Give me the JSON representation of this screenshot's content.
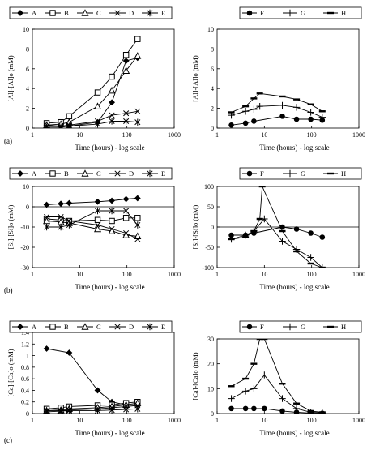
{
  "figure": {
    "row_labels": [
      "(a)",
      "(b)",
      "(c)"
    ]
  },
  "chart_data": [
    {
      "type": "line",
      "id": "a-left",
      "xlabel": "Time (hours) - log scale",
      "ylabel": "[Al]-[Al]o (mM)",
      "xscale": "log",
      "xlim": [
        1,
        1000
      ],
      "ylim": [
        0,
        10
      ],
      "xticks": [
        1,
        10,
        100,
        1000
      ],
      "yticks": [
        0,
        2,
        4,
        6,
        8,
        10
      ],
      "zero_line": false,
      "legend": "top",
      "series": [
        {
          "name": "A",
          "marker": "diamond",
          "x": [
            2,
            4,
            6,
            24,
            48,
            96,
            168
          ],
          "y": [
            0.3,
            0.2,
            0.2,
            0.6,
            2.6,
            6.8,
            7.1
          ]
        },
        {
          "name": "B",
          "marker": "square",
          "x": [
            2,
            4,
            6,
            24,
            48,
            96,
            168
          ],
          "y": [
            0.5,
            0.6,
            1.2,
            3.6,
            5.2,
            7.4,
            9.0
          ]
        },
        {
          "name": "C",
          "marker": "triangle",
          "x": [
            2,
            4,
            6,
            24,
            48,
            96,
            168
          ],
          "y": [
            0.3,
            0.4,
            0.6,
            2.2,
            3.8,
            5.8,
            7.3
          ]
        },
        {
          "name": "D",
          "marker": "x",
          "x": [
            2,
            4,
            6,
            24,
            48,
            96,
            168
          ],
          "y": [
            0.2,
            0.2,
            0.3,
            0.7,
            1.3,
            1.5,
            1.7
          ]
        },
        {
          "name": "E",
          "marker": "star",
          "x": [
            2,
            4,
            6,
            24,
            48,
            96,
            168
          ],
          "y": [
            0.1,
            0.1,
            0.2,
            0.4,
            0.7,
            0.7,
            0.6
          ]
        }
      ]
    },
    {
      "type": "line",
      "id": "a-right",
      "xlabel": "Time (hours) - log scale",
      "ylabel": "[Al]-[Al]o (mM)",
      "xscale": "log",
      "xlim": [
        1,
        1000
      ],
      "ylim": [
        0,
        10
      ],
      "xticks": [
        1,
        10,
        100,
        1000
      ],
      "yticks": [
        0,
        2,
        4,
        6,
        8,
        10
      ],
      "zero_line": false,
      "legend": "top",
      "series": [
        {
          "name": "F",
          "marker": "dot",
          "x": [
            2,
            4,
            6,
            24,
            48,
            96,
            168
          ],
          "y": [
            0.3,
            0.5,
            0.7,
            1.2,
            0.9,
            0.9,
            0.8
          ]
        },
        {
          "name": "G",
          "marker": "plus",
          "x": [
            2,
            4,
            6,
            8,
            24,
            48,
            96,
            168
          ],
          "y": [
            1.3,
            1.7,
            1.9,
            2.2,
            2.3,
            2.1,
            1.6,
            1.1
          ]
        },
        {
          "name": "H",
          "marker": "dash",
          "x": [
            2,
            4,
            6,
            8,
            24,
            48,
            96,
            168
          ],
          "y": [
            1.6,
            2.2,
            3.0,
            3.5,
            3.2,
            2.9,
            2.4,
            1.7
          ]
        }
      ]
    },
    {
      "type": "line",
      "id": "b-left",
      "xlabel": "Time (hours) - log scale",
      "ylabel": "[Si]-[Si]o (mM)",
      "xscale": "log",
      "xlim": [
        1,
        1000
      ],
      "ylim": [
        -30,
        10
      ],
      "xticks": [
        1,
        10,
        100,
        1000
      ],
      "yticks": [
        -30,
        -20,
        -10,
        0,
        10
      ],
      "zero_line": true,
      "legend": "top",
      "series": [
        {
          "name": "A",
          "marker": "diamond",
          "x": [
            2,
            4,
            6,
            24,
            48,
            96,
            168
          ],
          "y": [
            1.0,
            1.5,
            1.8,
            2.5,
            3.0,
            3.8,
            4.2
          ]
        },
        {
          "name": "B",
          "marker": "square",
          "x": [
            2,
            4,
            6,
            24,
            48,
            96,
            168
          ],
          "y": [
            -6,
            -6.5,
            -7,
            -6.5,
            -7,
            -5.5,
            -5.5
          ]
        },
        {
          "name": "C",
          "marker": "triangle",
          "x": [
            2,
            4,
            6,
            24,
            48,
            96,
            168
          ],
          "y": [
            -7,
            -7.5,
            -8,
            -11,
            -12,
            -14,
            -14.5
          ]
        },
        {
          "name": "D",
          "marker": "x",
          "x": [
            2,
            4,
            6,
            24,
            48,
            96,
            168
          ],
          "y": [
            -5,
            -5,
            -7,
            -9,
            -11,
            -13,
            -16
          ]
        },
        {
          "name": "E",
          "marker": "star",
          "x": [
            2,
            4,
            6,
            24,
            48,
            96,
            168
          ],
          "y": [
            -10,
            -10,
            -9,
            -2,
            -2,
            -2,
            -9
          ]
        }
      ]
    },
    {
      "type": "line",
      "id": "b-right",
      "xlabel": "Time (hours) - log scale",
      "ylabel": "[Si]-[Si]o (mM)",
      "xscale": "log",
      "xlim": [
        1,
        1000
      ],
      "ylim": [
        -100,
        100
      ],
      "xticks": [
        1,
        10,
        100,
        1000
      ],
      "yticks": [
        -100,
        -50,
        0,
        50,
        100
      ],
      "zero_line": true,
      "legend": "top",
      "series": [
        {
          "name": "F",
          "marker": "dot",
          "x": [
            2,
            4,
            6,
            24,
            48,
            96,
            168
          ],
          "y": [
            -20,
            -20,
            -15,
            0,
            -5,
            -15,
            -25
          ]
        },
        {
          "name": "G",
          "marker": "plus",
          "x": [
            2,
            4,
            6,
            10,
            24,
            48,
            96,
            168
          ],
          "y": [
            -30,
            -20,
            -10,
            20,
            -35,
            -55,
            -75,
            -100
          ]
        },
        {
          "name": "H",
          "marker": "dash",
          "x": [
            2,
            4,
            6,
            8,
            9,
            24,
            48,
            96,
            168
          ],
          "y": [
            -30,
            -25,
            -10,
            20,
            100,
            -10,
            -60,
            -90,
            -100
          ]
        }
      ]
    },
    {
      "type": "line",
      "id": "c-left",
      "xlabel": "Time (hours) - log scale",
      "ylabel": "[Ca]-[Ca]o (mM)",
      "xscale": "log",
      "xlim": [
        1,
        1000
      ],
      "ylim": [
        0,
        1.4
      ],
      "xticks": [
        1,
        10,
        100,
        1000
      ],
      "yticks": [
        0,
        0.2,
        0.4,
        0.6,
        0.8,
        1,
        1.2,
        1.4
      ],
      "zero_line": false,
      "legend": "top",
      "series": [
        {
          "name": "A",
          "marker": "diamond",
          "x": [
            2,
            6,
            24,
            48,
            96,
            168
          ],
          "y": [
            1.12,
            1.05,
            0.4,
            0.2,
            0.15,
            0.15
          ]
        },
        {
          "name": "B",
          "marker": "square",
          "x": [
            2,
            4,
            6,
            24,
            48,
            96,
            168
          ],
          "y": [
            0.08,
            0.1,
            0.12,
            0.14,
            0.15,
            0.18,
            0.2
          ]
        },
        {
          "name": "C",
          "marker": "triangle",
          "x": [
            2,
            4,
            6,
            24,
            48,
            96,
            168
          ],
          "y": [
            0.05,
            0.06,
            0.08,
            0.1,
            0.12,
            0.15,
            0.18
          ]
        },
        {
          "name": "D",
          "marker": "x",
          "x": [
            2,
            4,
            6,
            24,
            48,
            96,
            168
          ],
          "y": [
            0.05,
            0.05,
            0.06,
            0.08,
            0.1,
            0.12,
            0.14
          ]
        },
        {
          "name": "E",
          "marker": "star",
          "x": [
            2,
            4,
            6,
            24,
            48,
            96,
            168
          ],
          "y": [
            0.03,
            0.04,
            0.05,
            0.05,
            0.06,
            0.07,
            0.08
          ]
        }
      ]
    },
    {
      "type": "line",
      "id": "c-right",
      "xlabel": "Time (hours) - log scale",
      "ylabel": "[Ca]-[Ca]o (mM)",
      "xscale": "log",
      "xlim": [
        1,
        1000
      ],
      "ylim": [
        0,
        30
      ],
      "xticks": [
        1,
        10,
        100,
        1000
      ],
      "yticks": [
        0,
        10,
        20,
        30
      ],
      "zero_line": false,
      "legend": "top",
      "series": [
        {
          "name": "F",
          "marker": "dot",
          "x": [
            2,
            4,
            6,
            10,
            24,
            48,
            96,
            168
          ],
          "y": [
            2,
            2,
            2,
            2,
            1,
            0.5,
            0.2,
            0.1
          ]
        },
        {
          "name": "G",
          "marker": "plus",
          "x": [
            2,
            4,
            6,
            10,
            24,
            48,
            96,
            168
          ],
          "y": [
            6,
            9,
            10,
            15.5,
            6,
            2,
            0.5,
            0.3
          ]
        },
        {
          "name": "H",
          "marker": "dash",
          "x": [
            2,
            4,
            6,
            8,
            10,
            24,
            48,
            96,
            168
          ],
          "y": [
            11,
            14,
            20,
            30,
            30,
            12,
            4,
            1,
            0.5
          ]
        }
      ]
    }
  ]
}
